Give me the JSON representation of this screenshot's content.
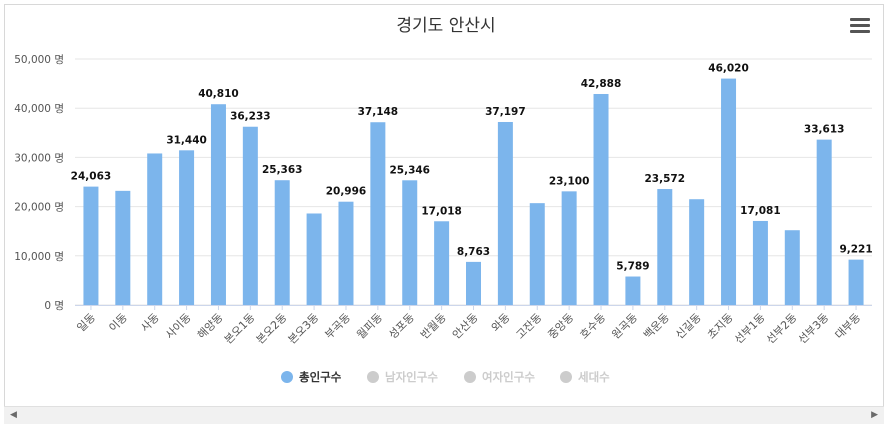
{
  "chart_data": {
    "type": "bar",
    "title": "경기도 안산시",
    "unit": "명",
    "ylim": [
      0,
      50000
    ],
    "yticks": [
      0,
      10000,
      20000,
      30000,
      40000,
      50000
    ],
    "ytick_labels": [
      "0 명",
      "10,000 명",
      "20,000 명",
      "30,000 명",
      "40,000 명",
      "50,000 명"
    ],
    "categories": [
      "일동",
      "이동",
      "사동",
      "사이동",
      "해양동",
      "본오1동",
      "본오2동",
      "본오3동",
      "부곡동",
      "월피동",
      "성포동",
      "반월동",
      "안산동",
      "와동",
      "고잔동",
      "중앙동",
      "호수동",
      "원곡동",
      "백운동",
      "신길동",
      "초지동",
      "선부1동",
      "선부2동",
      "선부3동",
      "대부동"
    ],
    "series": [
      {
        "name": "총인구수",
        "color": "#7cb5ec",
        "values": [
          24063,
          23200,
          30800,
          31440,
          40810,
          36233,
          25363,
          18600,
          20996,
          37148,
          25346,
          17018,
          8763,
          37197,
          20700,
          23100,
          42888,
          5789,
          23572,
          21500,
          46020,
          17081,
          15200,
          33613,
          9221
        ],
        "data_labels": [
          "24,063",
          "",
          "",
          "31,440",
          "40,810",
          "36,233",
          "25,363",
          "",
          "20,996",
          "37,148",
          "25,346",
          "17,018",
          "8,763",
          "37,197",
          "",
          "23,100",
          "42,888",
          "5,789",
          "23,572",
          "",
          "46,020",
          "17,081",
          "",
          "33,613",
          "9,221"
        ]
      }
    ],
    "legend": [
      {
        "name": "총인구수",
        "active": true,
        "color": "#7cb5ec"
      },
      {
        "name": "남자인구수",
        "active": false,
        "color": "#cccccc"
      },
      {
        "name": "여자인구수",
        "active": false,
        "color": "#cccccc"
      },
      {
        "name": "세대수",
        "active": false,
        "color": "#cccccc"
      }
    ],
    "legend_position": "bottom-center"
  },
  "menu": {
    "icon": "hamburger-menu-icon"
  },
  "scrollbar": {
    "left_arrow": "◀",
    "right_arrow": "▶"
  }
}
